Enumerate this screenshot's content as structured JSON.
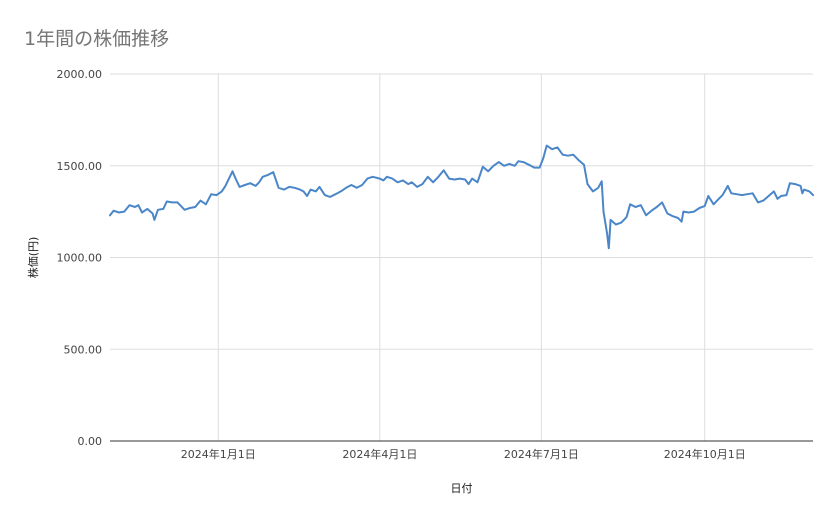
{
  "chart_data": {
    "type": "line",
    "title": "1年間の株価推移",
    "xlabel": "日付",
    "ylabel": "株価(円)",
    "ylim": [
      0,
      2000
    ],
    "xlim": [
      "2023-11-01",
      "2024-12-01"
    ],
    "grid": true,
    "legend": "none",
    "line_color": "#4a86c8",
    "y_tick_labels": [
      "0.00",
      "500.00",
      "1000.00",
      "1500.00",
      "2000.00"
    ],
    "x_ticks": [
      {
        "date": "2024-01-01",
        "label": "2024年1月1日"
      },
      {
        "date": "2024-04-01",
        "label": "2024年4月1日"
      },
      {
        "date": "2024-07-01",
        "label": "2024年7月1日"
      },
      {
        "date": "2024-10-01",
        "label": "2024年10月1日"
      }
    ],
    "series": [
      {
        "points": [
          [
            "2023-11-01",
            1230
          ],
          [
            "2023-11-03",
            1255
          ],
          [
            "2023-11-06",
            1245
          ],
          [
            "2023-11-09",
            1250
          ],
          [
            "2023-11-12",
            1285
          ],
          [
            "2023-11-15",
            1275
          ],
          [
            "2023-11-17",
            1285
          ],
          [
            "2023-11-19",
            1245
          ],
          [
            "2023-11-22",
            1265
          ],
          [
            "2023-11-25",
            1240
          ],
          [
            "2023-11-26",
            1205
          ],
          [
            "2023-11-28",
            1260
          ],
          [
            "2023-12-01",
            1265
          ],
          [
            "2023-12-03",
            1305
          ],
          [
            "2023-12-06",
            1300
          ],
          [
            "2023-12-09",
            1300
          ],
          [
            "2023-12-11",
            1280
          ],
          [
            "2023-12-13",
            1260
          ],
          [
            "2023-12-16",
            1270
          ],
          [
            "2023-12-19",
            1275
          ],
          [
            "2023-12-22",
            1310
          ],
          [
            "2023-12-25",
            1290
          ],
          [
            "2023-12-28",
            1345
          ],
          [
            "2023-12-31",
            1340
          ],
          [
            "2024-01-03",
            1360
          ],
          [
            "2024-01-05",
            1390
          ],
          [
            "2024-01-09",
            1470
          ],
          [
            "2024-01-11",
            1425
          ],
          [
            "2024-01-13",
            1385
          ],
          [
            "2024-01-16",
            1395
          ],
          [
            "2024-01-19",
            1405
          ],
          [
            "2024-01-22",
            1390
          ],
          [
            "2024-01-24",
            1410
          ],
          [
            "2024-01-26",
            1440
          ],
          [
            "2024-01-29",
            1450
          ],
          [
            "2024-02-01",
            1465
          ],
          [
            "2024-02-04",
            1380
          ],
          [
            "2024-02-07",
            1370
          ],
          [
            "2024-02-10",
            1385
          ],
          [
            "2024-02-13",
            1380
          ],
          [
            "2024-02-16",
            1370
          ],
          [
            "2024-02-18",
            1360
          ],
          [
            "2024-02-20",
            1335
          ],
          [
            "2024-02-22",
            1370
          ],
          [
            "2024-02-25",
            1360
          ],
          [
            "2024-02-27",
            1385
          ],
          [
            "2024-03-01",
            1340
          ],
          [
            "2024-03-04",
            1330
          ],
          [
            "2024-03-07",
            1345
          ],
          [
            "2024-03-10",
            1360
          ],
          [
            "2024-03-13",
            1380
          ],
          [
            "2024-03-16",
            1395
          ],
          [
            "2024-03-19",
            1380
          ],
          [
            "2024-03-22",
            1395
          ],
          [
            "2024-03-25",
            1430
          ],
          [
            "2024-03-28",
            1440
          ],
          [
            "2024-04-01",
            1430
          ],
          [
            "2024-04-03",
            1420
          ],
          [
            "2024-04-05",
            1440
          ],
          [
            "2024-04-08",
            1430
          ],
          [
            "2024-04-11",
            1410
          ],
          [
            "2024-04-14",
            1420
          ],
          [
            "2024-04-17",
            1400
          ],
          [
            "2024-04-19",
            1410
          ],
          [
            "2024-04-22",
            1385
          ],
          [
            "2024-04-25",
            1400
          ],
          [
            "2024-04-28",
            1440
          ],
          [
            "2024-05-01",
            1410
          ],
          [
            "2024-05-04",
            1440
          ],
          [
            "2024-05-07",
            1475
          ],
          [
            "2024-05-10",
            1430
          ],
          [
            "2024-05-13",
            1425
          ],
          [
            "2024-05-16",
            1430
          ],
          [
            "2024-05-19",
            1425
          ],
          [
            "2024-05-21",
            1400
          ],
          [
            "2024-05-23",
            1430
          ],
          [
            "2024-05-26",
            1410
          ],
          [
            "2024-05-29",
            1495
          ],
          [
            "2024-06-01",
            1470
          ],
          [
            "2024-06-04",
            1500
          ],
          [
            "2024-06-07",
            1520
          ],
          [
            "2024-06-10",
            1500
          ],
          [
            "2024-06-13",
            1510
          ],
          [
            "2024-06-16",
            1500
          ],
          [
            "2024-06-18",
            1525
          ],
          [
            "2024-06-21",
            1520
          ],
          [
            "2024-06-24",
            1505
          ],
          [
            "2024-06-27",
            1490
          ],
          [
            "2024-06-30",
            1490
          ],
          [
            "2024-07-02",
            1540
          ],
          [
            "2024-07-04",
            1610
          ],
          [
            "2024-07-07",
            1590
          ],
          [
            "2024-07-10",
            1600
          ],
          [
            "2024-07-13",
            1560
          ],
          [
            "2024-07-16",
            1555
          ],
          [
            "2024-07-19",
            1560
          ],
          [
            "2024-07-22",
            1530
          ],
          [
            "2024-07-25",
            1505
          ],
          [
            "2024-07-27",
            1400
          ],
          [
            "2024-07-30",
            1360
          ],
          [
            "2024-08-02",
            1380
          ],
          [
            "2024-08-04",
            1415
          ],
          [
            "2024-08-05",
            1250
          ],
          [
            "2024-08-07",
            1130
          ],
          [
            "2024-08-08",
            1050
          ],
          [
            "2024-08-09",
            1205
          ],
          [
            "2024-08-12",
            1180
          ],
          [
            "2024-08-15",
            1190
          ],
          [
            "2024-08-18",
            1220
          ],
          [
            "2024-08-20",
            1290
          ],
          [
            "2024-08-23",
            1275
          ],
          [
            "2024-08-26",
            1285
          ],
          [
            "2024-08-29",
            1230
          ],
          [
            "2024-09-01",
            1255
          ],
          [
            "2024-09-04",
            1275
          ],
          [
            "2024-09-07",
            1300
          ],
          [
            "2024-09-10",
            1240
          ],
          [
            "2024-09-13",
            1225
          ],
          [
            "2024-09-16",
            1215
          ],
          [
            "2024-09-18",
            1195
          ],
          [
            "2024-09-19",
            1250
          ],
          [
            "2024-09-22",
            1245
          ],
          [
            "2024-09-25",
            1250
          ],
          [
            "2024-09-28",
            1270
          ],
          [
            "2024-10-01",
            1280
          ],
          [
            "2024-10-03",
            1335
          ],
          [
            "2024-10-06",
            1290
          ],
          [
            "2024-10-08",
            1310
          ],
          [
            "2024-10-11",
            1340
          ],
          [
            "2024-10-14",
            1390
          ],
          [
            "2024-10-16",
            1350
          ],
          [
            "2024-10-19",
            1345
          ],
          [
            "2024-10-22",
            1340
          ],
          [
            "2024-10-25",
            1345
          ],
          [
            "2024-10-28",
            1350
          ],
          [
            "2024-10-31",
            1300
          ],
          [
            "2024-11-03",
            1310
          ],
          [
            "2024-11-06",
            1335
          ],
          [
            "2024-11-09",
            1360
          ],
          [
            "2024-11-11",
            1320
          ],
          [
            "2024-11-13",
            1335
          ],
          [
            "2024-11-16",
            1340
          ],
          [
            "2024-11-18",
            1405
          ],
          [
            "2024-11-21",
            1400
          ],
          [
            "2024-11-24",
            1390
          ],
          [
            "2024-11-25",
            1350
          ],
          [
            "2024-11-26",
            1370
          ],
          [
            "2024-11-29",
            1360
          ],
          [
            "2024-12-01",
            1340
          ]
        ]
      }
    ]
  }
}
